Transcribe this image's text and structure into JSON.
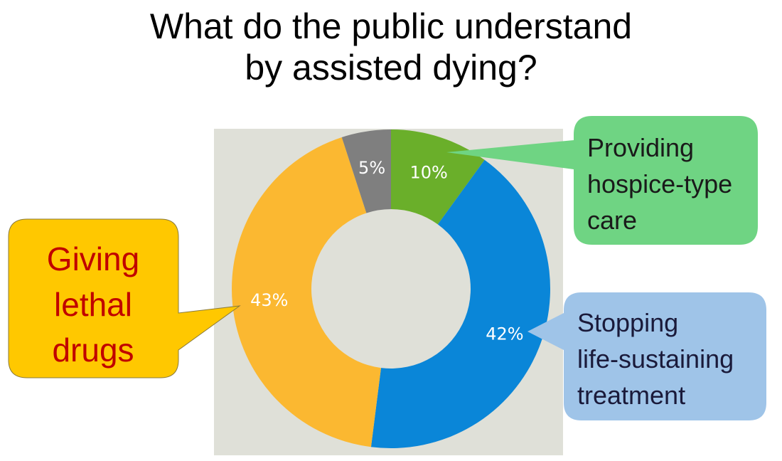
{
  "title": [
    "What do the public understand",
    "by assisted dying?"
  ],
  "colors": {
    "chart_background": "#dfe0d8",
    "hospice": "#6aaf2a",
    "stopping": "#0a86d8",
    "lethal": "#fbb831",
    "other": "#7f7f7f",
    "callout_hospice": "#6fd483",
    "callout_stopping": "#9fc4e8",
    "callout_lethal": "#ffc800"
  },
  "chart_data": {
    "type": "pie",
    "donut": true,
    "slices": [
      {
        "label": "10%",
        "value": 10,
        "color": "#6aaf2a"
      },
      {
        "label": "42%",
        "value": 42,
        "color": "#0a86d8"
      },
      {
        "label": "43%",
        "value": 43,
        "color": "#fbb831"
      },
      {
        "label": "5%",
        "value": 5,
        "color": "#7f7f7f"
      }
    ]
  },
  "callouts": {
    "hospice": [
      "Providing",
      "hospice-type",
      "care"
    ],
    "stopping": [
      "Stopping",
      "life-sustaining",
      "treatment"
    ],
    "lethal": [
      "Giving",
      "lethal",
      "drugs"
    ]
  }
}
